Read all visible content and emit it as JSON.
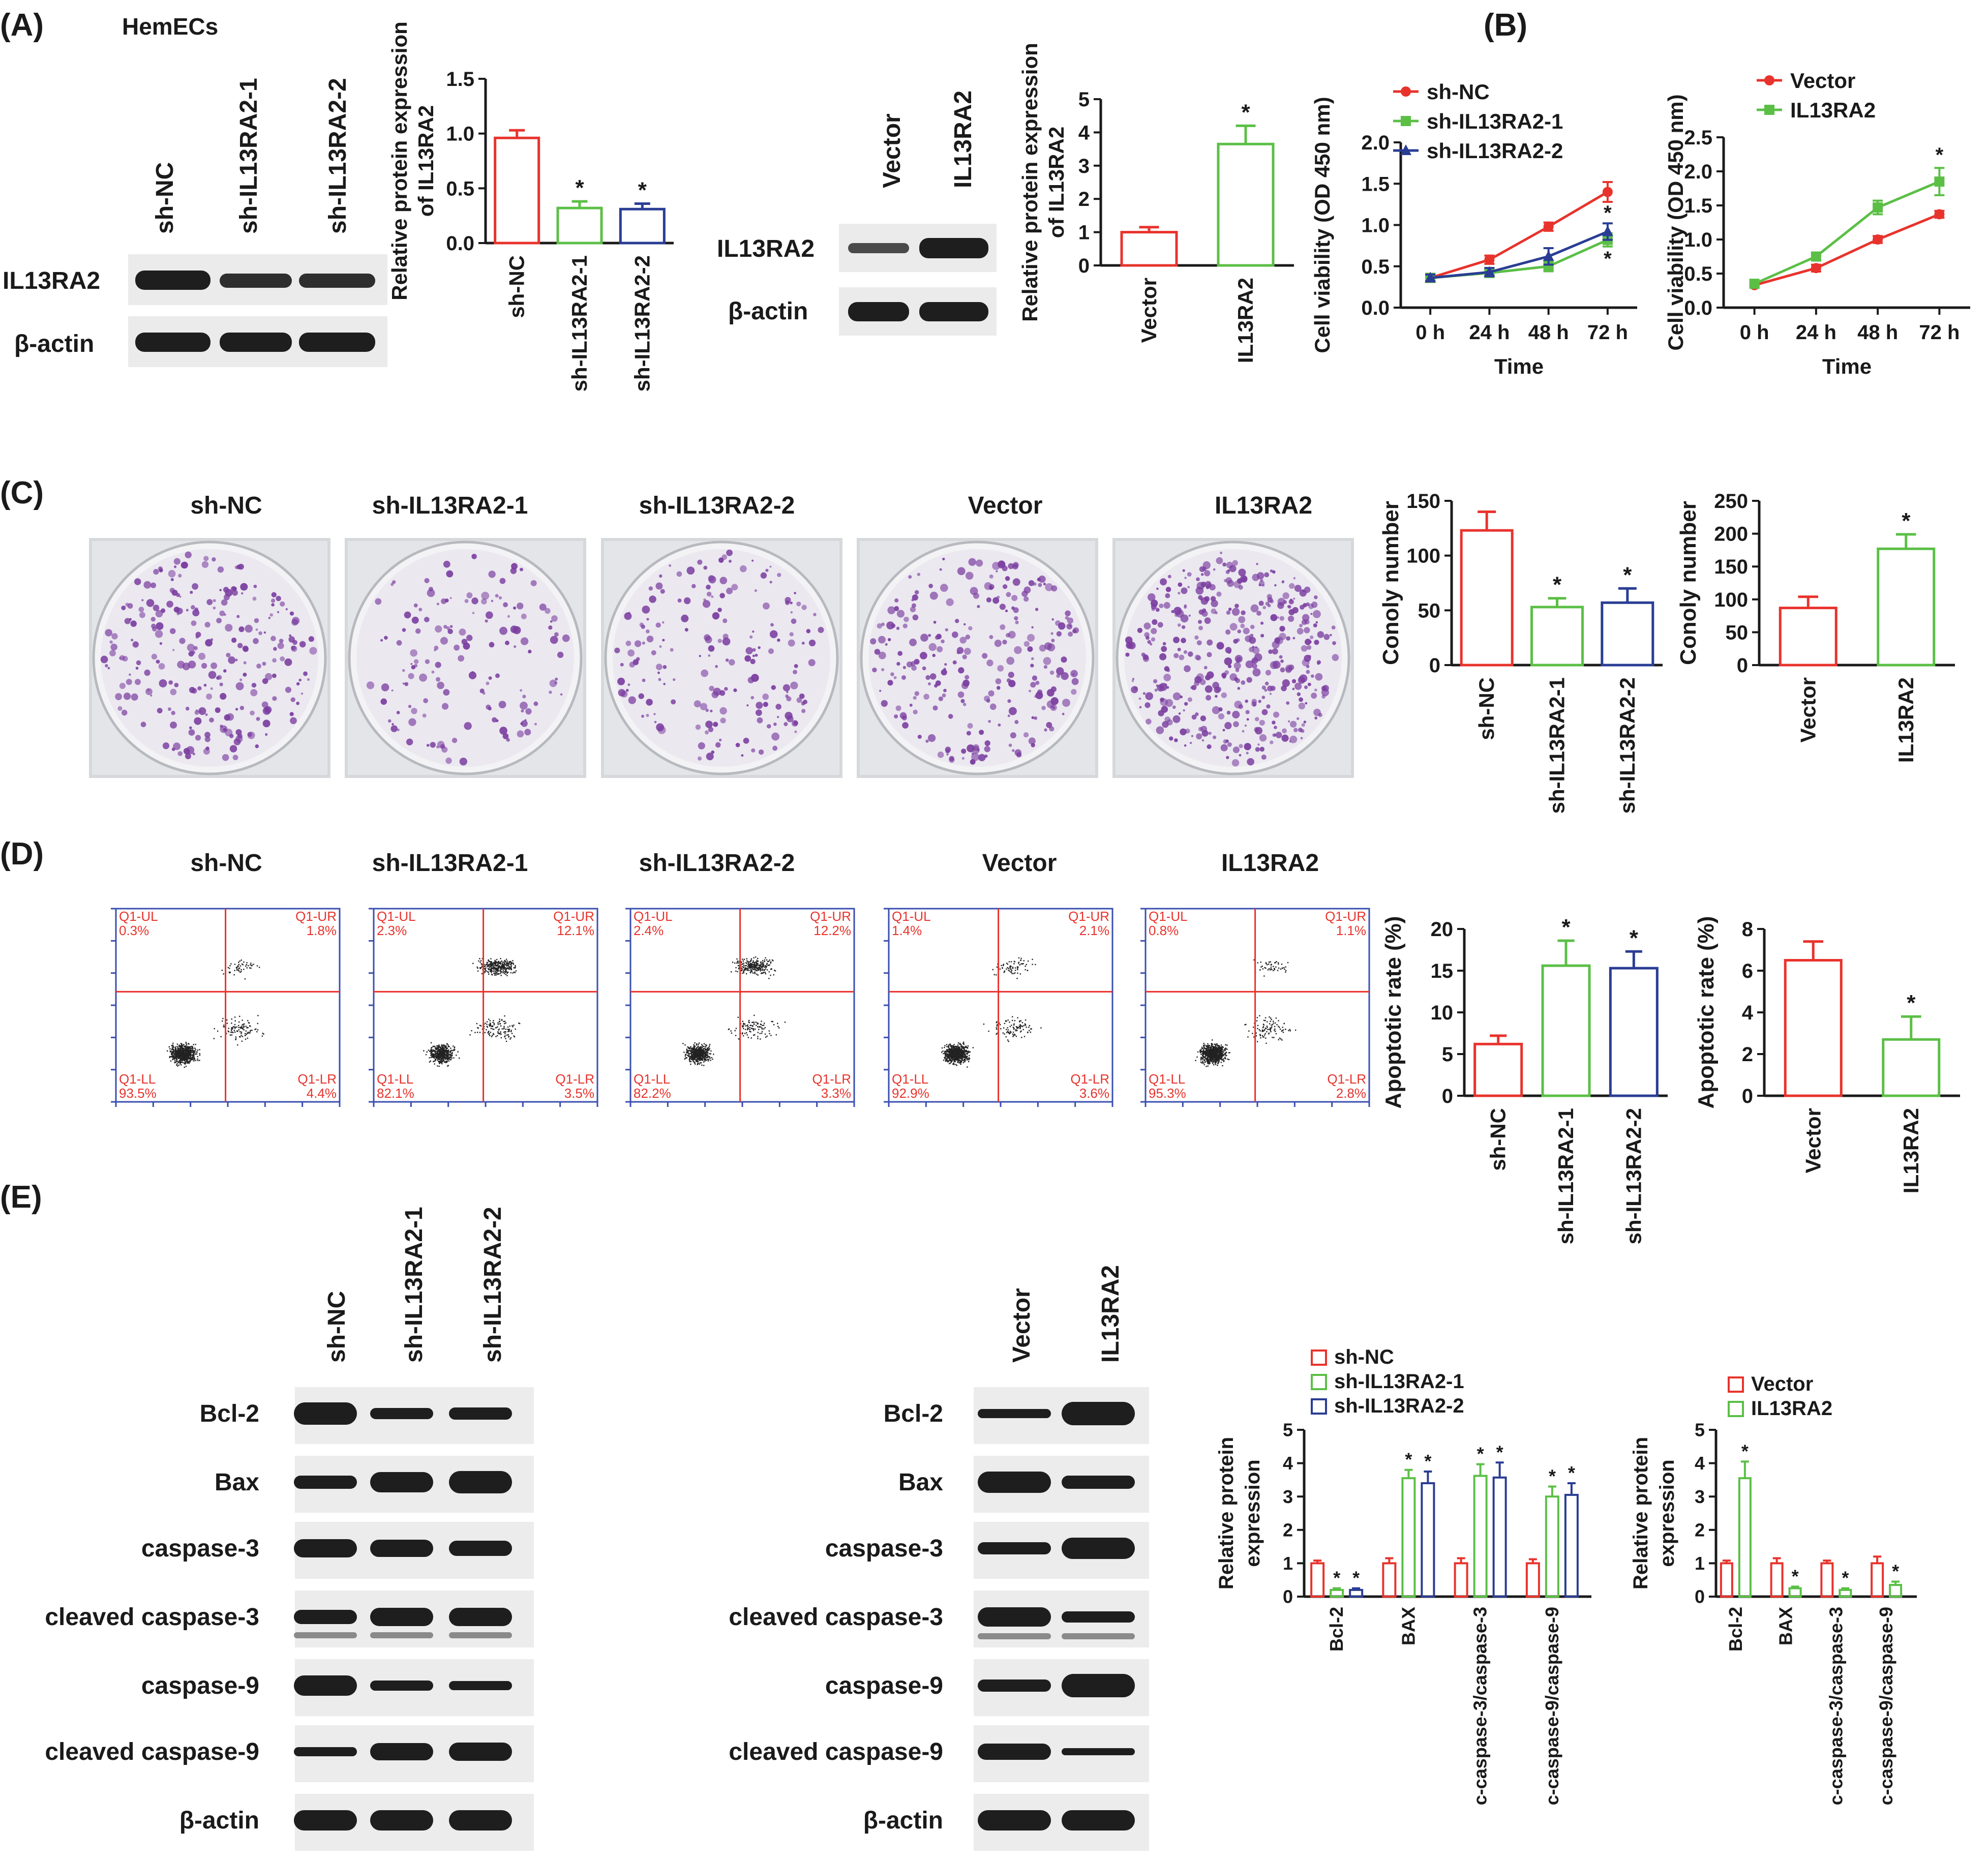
{
  "figure": {
    "panel_labels": [
      "(A)",
      "(B)",
      "(C)",
      "(D)",
      "(E)"
    ],
    "cell_label": "HemECs",
    "sig_mark": "*",
    "colors": {
      "red": "#e8332c",
      "green": "#5bbf46",
      "blue": "#2a3d94",
      "band": "#1e1e1e",
      "purple": "#7b3ea0"
    }
  },
  "groups": {
    "knockdown": [
      "sh-NC",
      "sh-IL13RA2-1",
      "sh-IL13RA2-2"
    ],
    "overexpression": [
      "Vector",
      "IL13RA2"
    ],
    "all": [
      "sh-NC",
      "sh-IL13RA2-1",
      "sh-IL13RA2-2",
      "Vector",
      "IL13RA2"
    ]
  },
  "blots": {
    "a_knockdown_rows": [
      "IL13RA2",
      "β-actin"
    ],
    "a_overexpression_rows": [
      "IL13RA2",
      "β-actin"
    ],
    "e_rows": [
      "Bcl-2",
      "Bax",
      "caspase-3",
      "cleaved caspase-3",
      "caspase-9",
      "cleaved caspase-9",
      "β-actin"
    ]
  },
  "flow": {
    "quadrant_names": [
      "Q1-UL",
      "Q1-UR",
      "Q1-LL",
      "Q1-LR"
    ],
    "quadrant_values": [
      [
        "0.3%",
        "1.8%",
        "93.5%",
        "4.4%"
      ],
      [
        "2.3%",
        "12.1%",
        "82.1%",
        "3.5%"
      ],
      [
        "2.4%",
        "12.2%",
        "82.2%",
        "3.3%"
      ],
      [
        "1.4%",
        "2.1%",
        "92.9%",
        "3.6%"
      ],
      [
        "0.8%",
        "1.1%",
        "95.3%",
        "2.8%"
      ]
    ]
  },
  "chart_data": [
    {
      "id": "a1",
      "type": "bar",
      "ylabel": "Relative protein expression of IL13RA2",
      "categories": [
        "sh-NC",
        "sh-IL13RA2-1",
        "sh-IL13RA2-2"
      ],
      "values": [
        0.96,
        0.32,
        0.31
      ],
      "errors": [
        0.07,
        0.06,
        0.05
      ],
      "significant": [
        false,
        true,
        true
      ],
      "ylim": [
        0,
        1.5
      ],
      "yticks": [
        "0.0",
        "0.5",
        "1.0",
        "1.5"
      ]
    },
    {
      "id": "a2",
      "type": "bar",
      "ylabel": "Relative protein expression of IL13RA2",
      "categories": [
        "Vector",
        "IL13RA2"
      ],
      "values": [
        1.0,
        3.65
      ],
      "errors": [
        0.15,
        0.55
      ],
      "significant": [
        false,
        true
      ],
      "ylim": [
        0,
        5
      ],
      "yticks": [
        "0",
        "1",
        "2",
        "3",
        "4",
        "5"
      ]
    },
    {
      "id": "b1",
      "type": "line",
      "xlabel": "Time",
      "ylabel": "Cell viability (OD 450 nm)",
      "x": [
        "0 h",
        "24 h",
        "48 h",
        "72 h"
      ],
      "ylim": [
        0,
        2.0
      ],
      "yticks": [
        "0.0",
        "0.5",
        "1.0",
        "1.5",
        "2.0"
      ],
      "legend": "top-left",
      "series": [
        {
          "name": "sh-NC",
          "values": [
            0.36,
            0.58,
            0.98,
            1.4
          ],
          "errors": [
            0.05,
            0.05,
            0.05,
            0.12
          ],
          "significant": [
            false,
            false,
            false,
            false
          ]
        },
        {
          "name": "sh-IL13RA2-1",
          "values": [
            0.36,
            0.42,
            0.5,
            0.82
          ],
          "errors": [
            0.04,
            0.05,
            0.06,
            0.08
          ],
          "significant": [
            false,
            false,
            false,
            true
          ]
        },
        {
          "name": "sh-IL13RA2-2",
          "values": [
            0.36,
            0.43,
            0.62,
            0.92
          ],
          "errors": [
            0.04,
            0.05,
            0.1,
            0.1
          ],
          "significant": [
            false,
            false,
            false,
            true
          ]
        }
      ]
    },
    {
      "id": "b2",
      "type": "line",
      "xlabel": "Time",
      "ylabel": "Cell viability (OD 450 nm)",
      "x": [
        "0 h",
        "24 h",
        "48 h",
        "72 h"
      ],
      "ylim": [
        0,
        2.5
      ],
      "yticks": [
        "0.0",
        "0.5",
        "1.0",
        "1.5",
        "2.0",
        "2.5"
      ],
      "legend": "top-left",
      "series": [
        {
          "name": "Vector",
          "values": [
            0.33,
            0.58,
            1.0,
            1.37
          ],
          "errors": [
            0.03,
            0.05,
            0.05,
            0.05
          ],
          "significant": [
            false,
            false,
            false,
            false
          ]
        },
        {
          "name": "IL13RA2",
          "values": [
            0.35,
            0.75,
            1.47,
            1.85
          ],
          "errors": [
            0.03,
            0.05,
            0.1,
            0.2
          ],
          "significant": [
            false,
            false,
            false,
            true
          ]
        }
      ]
    },
    {
      "id": "c1",
      "type": "bar",
      "ylabel": "Conoly number",
      "categories": [
        "sh-NC",
        "sh-IL13RA2-1",
        "sh-IL13RA2-2"
      ],
      "values": [
        123,
        53,
        57
      ],
      "errors": [
        17,
        8,
        13
      ],
      "significant": [
        false,
        true,
        true
      ],
      "ylim": [
        0,
        150
      ],
      "yticks": [
        "0",
        "50",
        "100",
        "150"
      ]
    },
    {
      "id": "c2",
      "type": "bar",
      "ylabel": "Conoly number",
      "categories": [
        "Vector",
        "IL13RA2"
      ],
      "values": [
        87,
        177
      ],
      "errors": [
        17,
        22
      ],
      "significant": [
        false,
        true
      ],
      "ylim": [
        0,
        250
      ],
      "yticks": [
        "0",
        "50",
        "100",
        "150",
        "200",
        "250"
      ]
    },
    {
      "id": "d1",
      "type": "bar",
      "ylabel": "Apoptotic rate (%)",
      "categories": [
        "sh-NC",
        "sh-IL13RA2-1",
        "sh-IL13RA2-2"
      ],
      "values": [
        6.2,
        15.6,
        15.3
      ],
      "errors": [
        1.0,
        3.0,
        2.0
      ],
      "significant": [
        false,
        true,
        true
      ],
      "ylim": [
        0,
        20
      ],
      "yticks": [
        "0",
        "5",
        "10",
        "15",
        "20"
      ]
    },
    {
      "id": "d2",
      "type": "bar",
      "ylabel": "Apoptotic rate (%)",
      "categories": [
        "Vector",
        "IL13RA2"
      ],
      "values": [
        6.5,
        2.7
      ],
      "errors": [
        0.9,
        1.1
      ],
      "significant": [
        false,
        true
      ],
      "ylim": [
        0,
        8
      ],
      "yticks": [
        "0",
        "2",
        "4",
        "6",
        "8"
      ]
    },
    {
      "id": "e1",
      "type": "bar",
      "ylabel": "Relative protein expression",
      "categories": [
        "Bcl-2",
        "BAX",
        "c-caspase-3/caspase-3",
        "c-caspase-9/caspase-9"
      ],
      "legend": "top-left",
      "ylim": [
        0,
        5
      ],
      "yticks": [
        "0",
        "1",
        "2",
        "3",
        "4",
        "5"
      ],
      "series": [
        {
          "name": "sh-NC",
          "values": [
            1.0,
            1.0,
            1.0,
            1.0
          ],
          "errors": [
            0.08,
            0.15,
            0.15,
            0.12
          ],
          "significant": [
            false,
            false,
            false,
            false
          ]
        },
        {
          "name": "sh-IL13RA2-1",
          "values": [
            0.2,
            3.55,
            3.62,
            3.0
          ],
          "errors": [
            0.05,
            0.25,
            0.35,
            0.3
          ],
          "significant": [
            true,
            true,
            true,
            true
          ]
        },
        {
          "name": "sh-IL13RA2-2",
          "values": [
            0.2,
            3.4,
            3.57,
            3.05
          ],
          "errors": [
            0.05,
            0.35,
            0.45,
            0.35
          ],
          "significant": [
            true,
            true,
            true,
            true
          ]
        }
      ]
    },
    {
      "id": "e2",
      "type": "bar",
      "ylabel": "Relative protein expression",
      "categories": [
        "Bcl-2",
        "BAX",
        "c-caspase-3/caspase-3",
        "c-caspase-9/caspase-9"
      ],
      "legend": "top-left",
      "ylim": [
        0,
        5
      ],
      "yticks": [
        "0",
        "1",
        "2",
        "3",
        "4",
        "5"
      ],
      "series": [
        {
          "name": "Vector",
          "values": [
            1.0,
            1.0,
            1.0,
            1.0
          ],
          "errors": [
            0.08,
            0.15,
            0.08,
            0.2
          ],
          "significant": [
            false,
            false,
            false,
            false
          ]
        },
        {
          "name": "IL13RA2",
          "values": [
            3.55,
            0.25,
            0.2,
            0.35
          ],
          "errors": [
            0.5,
            0.05,
            0.05,
            0.1
          ],
          "significant": [
            true,
            true,
            true,
            true
          ]
        }
      ]
    }
  ]
}
